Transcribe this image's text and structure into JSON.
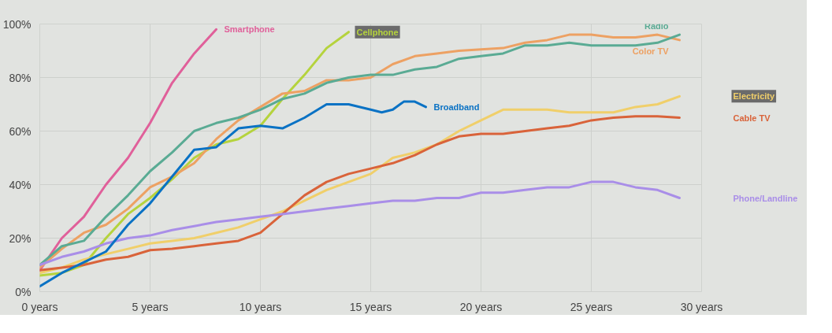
{
  "chart_data": {
    "type": "line",
    "x": [
      0,
      1,
      2,
      3,
      4,
      5,
      6,
      7,
      8,
      9,
      10,
      11,
      12,
      13,
      14,
      15,
      16,
      17,
      18,
      19,
      20,
      21,
      22,
      23,
      24,
      25,
      26,
      27,
      28,
      29
    ],
    "series": [
      {
        "name": "Smartphone",
        "color": "#e0609a",
        "x": [
          0,
          1,
          2,
          3,
          4,
          5,
          6,
          7,
          8
        ],
        "values": [
          8,
          20,
          28,
          40,
          50,
          63,
          78,
          89,
          98
        ]
      },
      {
        "name": "Cellphone",
        "color": "#b5d33d",
        "x": [
          0,
          1,
          2,
          3,
          4,
          5,
          6,
          7,
          8,
          9,
          10,
          11,
          12,
          13,
          14
        ],
        "values": [
          6,
          7,
          10,
          20,
          29,
          35,
          42,
          50,
          55,
          57,
          62,
          72,
          81,
          91,
          97
        ]
      },
      {
        "name": "Color TV",
        "color": "#eda163",
        "values": [
          9,
          16,
          22,
          25,
          31,
          39,
          43,
          48,
          57,
          64,
          69,
          74,
          75,
          79,
          79,
          80,
          85,
          88,
          89,
          90,
          90.5,
          91,
          93,
          94,
          96,
          96,
          95,
          95,
          96,
          94
        ]
      },
      {
        "name": "Radio",
        "color": "#5aab94",
        "values": [
          10,
          17,
          19,
          28,
          36,
          45,
          52,
          60,
          63,
          65,
          68,
          72,
          74,
          78,
          80,
          81,
          81,
          83,
          84,
          87,
          88,
          89,
          92,
          92,
          93,
          92,
          92,
          92,
          93,
          96
        ]
      },
      {
        "name": "Electricity",
        "color": "#f0cf6a",
        "values": [
          7,
          9,
          12,
          14,
          16,
          18,
          19,
          20,
          22,
          24,
          27,
          30,
          34,
          38,
          41,
          44,
          50,
          52,
          55,
          60,
          64,
          68,
          68,
          68,
          67,
          67,
          67,
          69,
          70,
          73
        ]
      },
      {
        "name": "Cable TV",
        "color": "#d9633a",
        "values": [
          8,
          9,
          10,
          12,
          13,
          15.5,
          16,
          17,
          18,
          19,
          22,
          29,
          36,
          41,
          44,
          46,
          48,
          51,
          55,
          58,
          59,
          59,
          60,
          61,
          62,
          64,
          65,
          65.5,
          65.5,
          65
        ]
      },
      {
        "name": "Phone/Landline",
        "color": "#a98ee8",
        "values": [
          10,
          13,
          15,
          18,
          20,
          21,
          23,
          24.5,
          26,
          27,
          28,
          29,
          30,
          31,
          32,
          33,
          34,
          34,
          35,
          35,
          37,
          37,
          38,
          39,
          39,
          41,
          41,
          39,
          38,
          35
        ]
      },
      {
        "name": "Broadband",
        "color": "#0a72c4",
        "x": [
          0,
          1,
          2,
          3,
          4,
          5,
          6,
          7,
          8,
          9,
          10,
          11,
          12,
          13,
          14,
          15,
          15.5,
          16,
          16.5,
          17,
          17.5
        ],
        "values": [
          2,
          7,
          11,
          15,
          25,
          33,
          43,
          53,
          54,
          61,
          62,
          61,
          65,
          70,
          70,
          68,
          67,
          68,
          71,
          71,
          69
        ]
      }
    ],
    "xlim": [
      0,
      30
    ],
    "ylim": [
      0,
      100
    ],
    "xticks": [
      {
        "value": 0,
        "label": "0 years"
      },
      {
        "value": 5,
        "label": "5 years"
      },
      {
        "value": 10,
        "label": "10 years"
      },
      {
        "value": 15,
        "label": "15 years"
      },
      {
        "value": 20,
        "label": "20 years"
      },
      {
        "value": 25,
        "label": "25 years"
      },
      {
        "value": 30,
        "label": "30 years"
      }
    ],
    "yticks": [
      {
        "value": 0,
        "label": "0%"
      },
      {
        "value": 20,
        "label": "20%"
      },
      {
        "value": 40,
        "label": "40%"
      },
      {
        "value": 60,
        "label": "60%"
      },
      {
        "value": 80,
        "label": "80%"
      },
      {
        "value": 100,
        "label": "100%"
      }
    ],
    "grid": true,
    "legend": false,
    "marker": "none",
    "line_style": "solid"
  }
}
